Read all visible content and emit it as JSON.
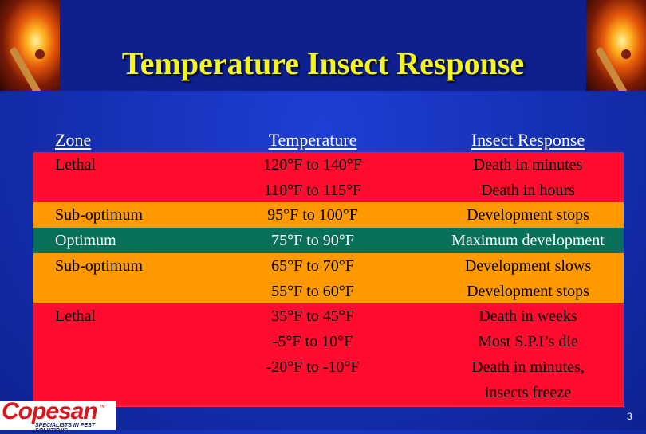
{
  "title": "Temperature Insect Response",
  "colors": {
    "title": "#f5f51e",
    "lethal": "#ff0c2e",
    "suboptimum": "#ff9900",
    "optimum": "#08705a",
    "background": "#1532b8"
  },
  "table": {
    "headers": {
      "zone": "Zone",
      "temperature": "Temperature",
      "response": "Insect Response"
    },
    "rows": [
      {
        "zone": "Lethal",
        "temperature": "120°F to 140°F",
        "response": "Death in minutes"
      },
      {
        "zone": "",
        "temperature": "110°F to 115°F",
        "response": "Death in hours"
      },
      {
        "zone": "Sub-optimum",
        "temperature": "95°F to 100°F",
        "response": "Development stops"
      },
      {
        "zone": "Optimum",
        "temperature": "75°F to 90°F",
        "response": "Maximum development"
      },
      {
        "zone": "Sub-optimum",
        "temperature": "65°F to 70°F",
        "response": "Development slows"
      },
      {
        "zone": "",
        "temperature": "55°F to 60°F",
        "response": "Development stops"
      },
      {
        "zone": "Lethal",
        "temperature": "35°F to 45°F",
        "response": "Death in weeks"
      },
      {
        "zone": "",
        "temperature": "-5°F to 10°F",
        "response": "Most S.P.I’s die"
      },
      {
        "zone": "",
        "temperature": "-20°F to -10°F",
        "response": "Death in minutes,"
      },
      {
        "zone": "",
        "temperature": "",
        "response": "insects freeze"
      }
    ]
  },
  "logo": {
    "name": "Copesan",
    "tm": "™",
    "tagline": "SPECIALISTS IN PEST SOLUTIONS"
  },
  "page_number": "3"
}
